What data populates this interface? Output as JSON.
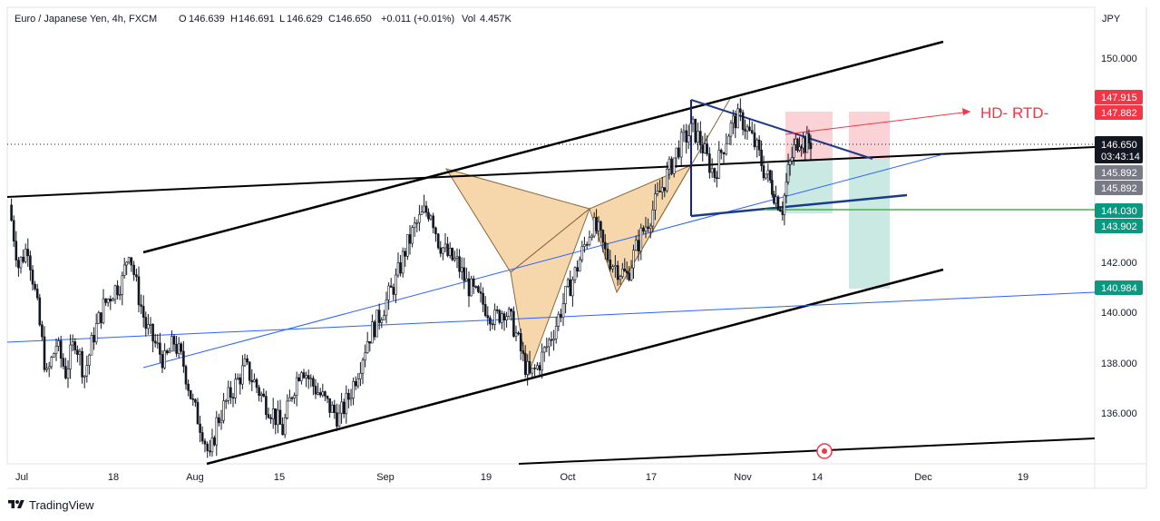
{
  "header": {
    "symbol": "Euro / Japanese Yen, 4h, FXCM",
    "o_label": "O",
    "o_value": "146.639",
    "h_label": "H",
    "h_value": "146.691",
    "l_label": "L",
    "l_value": "146.629",
    "c_label": "C",
    "c_value": "146.650",
    "change": "+0.011 (+0.01%)",
    "vol_label": "Vol",
    "vol_value": "4.457K"
  },
  "currency": "JPY",
  "annotation": "HD- RTD-",
  "brand": "TradingView",
  "colors": {
    "up": "#131722",
    "down": "#131722",
    "pattern_fill": "#f3c98f",
    "pattern_stroke": "#8a6a3a",
    "red_badge": "#f23645",
    "green_badge": "#089981",
    "gray_badge": "#787b86",
    "black_badge": "#131722",
    "blue_line": "#2962ff",
    "green_line": "#4caf50"
  },
  "chart_data": {
    "type": "candlestick",
    "y_ticks": [
      "150.000",
      "142.000",
      "140.000",
      "138.000",
      "136.000"
    ],
    "x_ticks": [
      "Jul",
      "18",
      "Aug",
      "15",
      "Sep",
      "19",
      "Oct",
      "17",
      "Nov",
      "14",
      "Dec",
      "19"
    ],
    "ylim": [
      134.0,
      152.0
    ],
    "price_badges": [
      {
        "value": "147.915",
        "color": "#f23645"
      },
      {
        "value": "147.882",
        "color": "#f23645"
      },
      {
        "value": "146.650",
        "sub": "03:43:14",
        "color": "#131722"
      },
      {
        "value": "145.892",
        "color": "#787b86"
      },
      {
        "value": "145.892",
        "color": "#787b86"
      },
      {
        "value": "144.030",
        "color": "#089981"
      },
      {
        "value": "143.902",
        "color": "#089981"
      },
      {
        "value": "140.984",
        "color": "#089981"
      }
    ],
    "close_path": [
      [
        0,
        144.2
      ],
      [
        10,
        141.8
      ],
      [
        20,
        142.6
      ],
      [
        30,
        140.1
      ],
      [
        40,
        137.4
      ],
      [
        50,
        138.7
      ],
      [
        60,
        137.6
      ],
      [
        70,
        138.9
      ],
      [
        80,
        137.5
      ],
      [
        90,
        139.1
      ],
      [
        100,
        140.2
      ],
      [
        110,
        140.8
      ],
      [
        120,
        141.2
      ],
      [
        127,
        142.5
      ],
      [
        135,
        141.0
      ],
      [
        145,
        139.4
      ],
      [
        155,
        138.7
      ],
      [
        165,
        138.0
      ],
      [
        175,
        138.8
      ],
      [
        185,
        137.9
      ],
      [
        195,
        136.3
      ],
      [
        205,
        135.3
      ],
      [
        213,
        134.1
      ],
      [
        220,
        135.6
      ],
      [
        230,
        136.4
      ],
      [
        240,
        137.1
      ],
      [
        250,
        137.8
      ],
      [
        260,
        137.2
      ],
      [
        270,
        136.5
      ],
      [
        280,
        136.0
      ],
      [
        290,
        135.3
      ],
      [
        300,
        136.8
      ],
      [
        310,
        137.9
      ],
      [
        320,
        137.2
      ],
      [
        330,
        136.7
      ],
      [
        340,
        136.2
      ],
      [
        350,
        135.8
      ],
      [
        360,
        136.6
      ],
      [
        370,
        137.7
      ],
      [
        380,
        138.9
      ],
      [
        390,
        139.6
      ],
      [
        400,
        140.4
      ],
      [
        410,
        141.2
      ],
      [
        420,
        142.4
      ],
      [
        430,
        143.3
      ],
      [
        440,
        143.9
      ],
      [
        447,
        144.0
      ],
      [
        455,
        142.8
      ],
      [
        465,
        142.2
      ],
      [
        475,
        141.9
      ],
      [
        485,
        141.1
      ],
      [
        495,
        140.6
      ],
      [
        505,
        140.2
      ],
      [
        515,
        139.7
      ],
      [
        525,
        140.1
      ],
      [
        535,
        139.4
      ],
      [
        545,
        138.1
      ],
      [
        552,
        137.4
      ],
      [
        560,
        137.8
      ],
      [
        570,
        138.6
      ],
      [
        580,
        139.5
      ],
      [
        590,
        140.6
      ],
      [
        600,
        141.5
      ],
      [
        610,
        142.6
      ],
      [
        618,
        143.4
      ],
      [
        625,
        143.1
      ],
      [
        632,
        142.3
      ],
      [
        640,
        141.9
      ],
      [
        648,
        141.6
      ],
      [
        655,
        141.4
      ],
      [
        662,
        142.2
      ],
      [
        670,
        143.0
      ],
      [
        680,
        143.8
      ],
      [
        690,
        144.7
      ],
      [
        700,
        145.6
      ],
      [
        710,
        146.5
      ],
      [
        718,
        146.9
      ],
      [
        725,
        147.2
      ],
      [
        733,
        146.7
      ],
      [
        740,
        146.0
      ],
      [
        748,
        145.4
      ],
      [
        755,
        146.3
      ],
      [
        763,
        147.1
      ],
      [
        770,
        147.6
      ],
      [
        778,
        147.5
      ],
      [
        785,
        147.0
      ],
      [
        793,
        146.4
      ],
      [
        800,
        145.6
      ],
      [
        807,
        145.1
      ],
      [
        813,
        144.5
      ],
      [
        820,
        144.1
      ],
      [
        826,
        145.5
      ],
      [
        832,
        146.4
      ],
      [
        838,
        146.9
      ],
      [
        844,
        146.6
      ],
      [
        850,
        146.7
      ]
    ]
  }
}
